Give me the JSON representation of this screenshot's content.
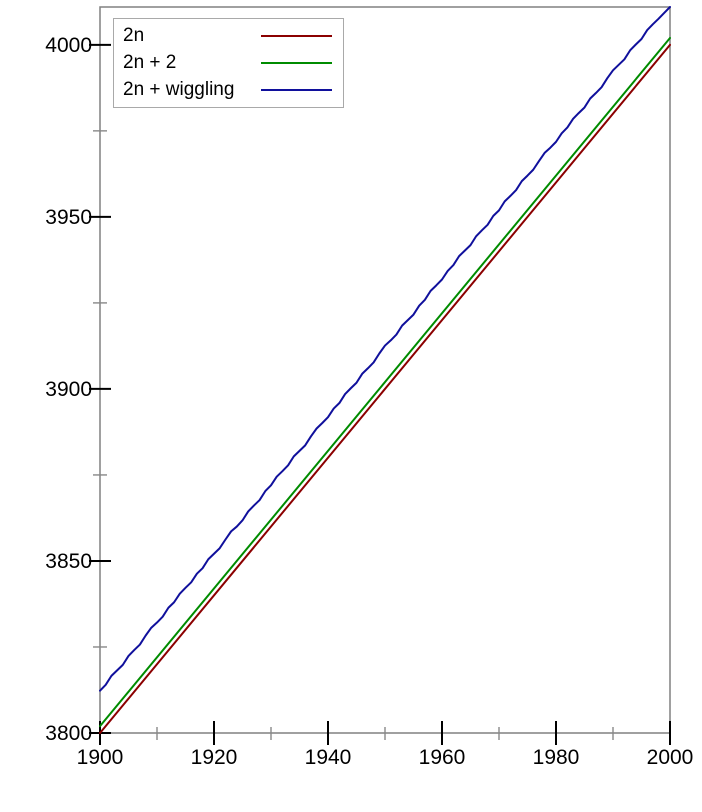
{
  "chart_data": {
    "type": "line",
    "title": "",
    "xlabel": "",
    "ylabel": "",
    "xlim": [
      1900,
      2000
    ],
    "ylim": [
      3800,
      4011
    ],
    "grid": false,
    "legend_position": "top-left-inside",
    "x_axis": {
      "major_ticks": [
        1900,
        1920,
        1940,
        1960,
        1980,
        2000
      ],
      "minor_ticks": [
        1910,
        1930,
        1950,
        1970,
        1990
      ],
      "tick_labels": [
        "1900",
        "1920",
        "1940",
        "1960",
        "1980",
        "2000"
      ]
    },
    "y_axis": {
      "major_ticks": [
        3800,
        3850,
        3900,
        3950,
        4000
      ],
      "minor_ticks": [
        3825,
        3875,
        3925,
        3975
      ],
      "tick_labels": [
        "3800",
        "3850",
        "3900",
        "3950",
        "4000"
      ]
    },
    "series": [
      {
        "name": "2n",
        "color": "#8b0000",
        "x": [
          1900,
          2000
        ],
        "y": [
          3800,
          4000
        ]
      },
      {
        "name": "2n + 2",
        "color": "#008c00",
        "x": [
          1900,
          2000
        ],
        "y": [
          3802,
          4002
        ]
      },
      {
        "name": "2n + wiggling",
        "color": "#10109c",
        "x_start": 1900,
        "x_step": 1,
        "y": [
          3812.3,
          3814.0,
          3816.6,
          3818.2,
          3819.8,
          3822.4,
          3824.1,
          3825.7,
          3828.3,
          3830.6,
          3832.1,
          3833.8,
          3836.4,
          3838.0,
          3840.5,
          3842.2,
          3843.8,
          3846.3,
          3847.9,
          3850.5,
          3852.1,
          3853.7,
          3856.2,
          3858.6,
          3860.0,
          3861.8,
          3864.4,
          3866.1,
          3867.7,
          3870.3,
          3872.0,
          3874.5,
          3876.1,
          3877.8,
          3880.4,
          3882.0,
          3883.6,
          3886.2,
          3888.5,
          3890.1,
          3891.8,
          3894.3,
          3895.9,
          3898.5,
          3900.2,
          3901.8,
          3904.4,
          3906.0,
          3907.7,
          3910.3,
          3912.6,
          3914.1,
          3915.8,
          3918.4,
          3920.0,
          3921.6,
          3924.2,
          3925.9,
          3928.5,
          3930.1,
          3931.8,
          3934.3,
          3936.0,
          3938.6,
          3940.2,
          3941.8,
          3944.4,
          3946.1,
          3947.7,
          3950.3,
          3951.9,
          3954.5,
          3956.1,
          3957.8,
          3960.4,
          3962.0,
          3963.7,
          3966.2,
          3968.6,
          3970.1,
          3971.8,
          3974.3,
          3976.0,
          3978.5,
          3980.2,
          3981.8,
          3984.4,
          3986.0,
          3987.7,
          3990.3,
          3992.6,
          3994.2,
          3995.8,
          3998.4,
          4000.1,
          4001.7,
          4004.3,
          4006.0,
          4007.6,
          4009.3,
          4011.0
        ]
      }
    ],
    "legend": {
      "entries": [
        "2n",
        "2n + 2",
        "2n + wiggling"
      ]
    },
    "colors": {
      "background": "#ffffff",
      "axis_line": "#808080",
      "major_tick": "#000000",
      "minor_tick": "#888888",
      "tick_label": "#000000",
      "legend_border": "#a9a9a9"
    }
  }
}
